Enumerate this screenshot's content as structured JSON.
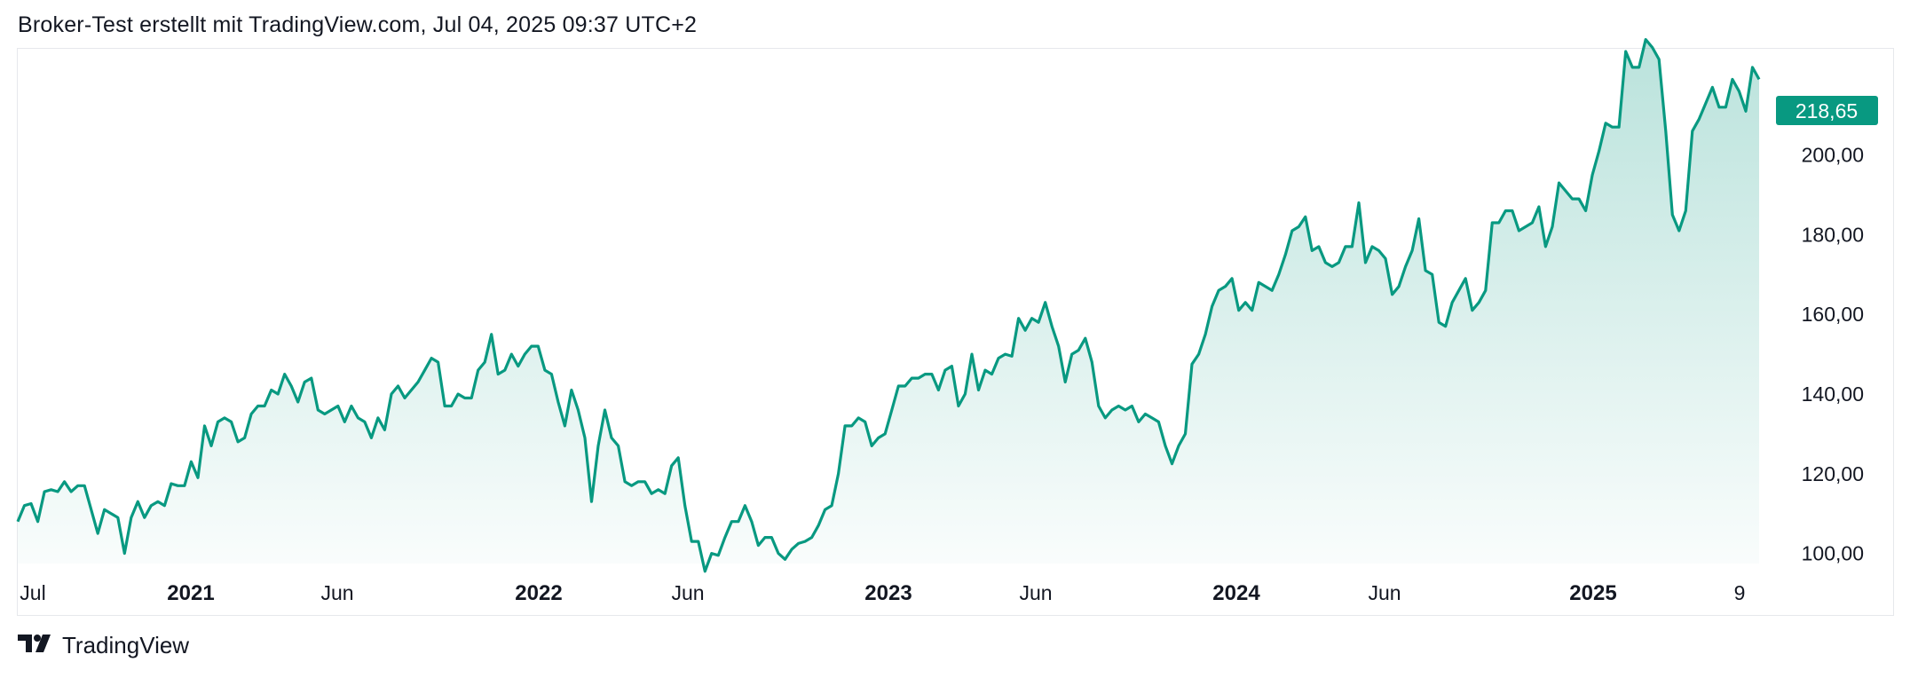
{
  "header": {
    "caption": "Broker-Test erstellt mit TradingView.com, Jul 04, 2025 09:37 UTC+2"
  },
  "footer": {
    "brand": "TradingView",
    "logo_icon": "tradingview-logo-icon"
  },
  "colors": {
    "line": "#089981",
    "fill_top": "#089981",
    "price_label_bg": "#089981",
    "text": "#131722",
    "border": "#e6e8ec"
  },
  "chart_data": {
    "type": "area",
    "x_start": "2020-07",
    "x_end": "2025-07-04",
    "ylim": [
      93,
      230
    ],
    "y_ticks": [
      "100,00",
      "120,00",
      "140,00",
      "160,00",
      "180,00",
      "200,00"
    ],
    "x_ticks": [
      {
        "label": "Jul",
        "bold": false
      },
      {
        "label": "2021",
        "bold": true
      },
      {
        "label": "Jun",
        "bold": false
      },
      {
        "label": "2022",
        "bold": true
      },
      {
        "label": "Jun",
        "bold": false
      },
      {
        "label": "2023",
        "bold": true
      },
      {
        "label": "Jun",
        "bold": false
      },
      {
        "label": "2024",
        "bold": true
      },
      {
        "label": "Jun",
        "bold": false
      },
      {
        "label": "2025",
        "bold": true
      },
      {
        "label": "9",
        "bold": false
      }
    ],
    "last_price_label": "218,65",
    "values": [
      108,
      112,
      112.5,
      108,
      115.5,
      116,
      115.5,
      118,
      115.5,
      117,
      117,
      111,
      105,
      111,
      110,
      109,
      100,
      109,
      113,
      109,
      112,
      113,
      112,
      117.5,
      117,
      117,
      123,
      119,
      132,
      127,
      133,
      134,
      133,
      128,
      129,
      135,
      137,
      137,
      141,
      140,
      145,
      142,
      138,
      143,
      144,
      136,
      135,
      136,
      137,
      133,
      137,
      134,
      133,
      129,
      134,
      131,
      140,
      142,
      139,
      141,
      143,
      146,
      149,
      148,
      137,
      137,
      140,
      139,
      139,
      146,
      148,
      155,
      145,
      146,
      150,
      147,
      150,
      152,
      152,
      146,
      145,
      138,
      132,
      141,
      136,
      129,
      113,
      127,
      136,
      129,
      127,
      118,
      117,
      118,
      118,
      115,
      116,
      115,
      122,
      124,
      112,
      103,
      103,
      95.5,
      100,
      99.5,
      104,
      108,
      108,
      112,
      108,
      102,
      104,
      104,
      100,
      98.5,
      101,
      102.5,
      103,
      104,
      107,
      111,
      112,
      120,
      132,
      132,
      134,
      133,
      127,
      129,
      130,
      136,
      142,
      142,
      144,
      144,
      145,
      145,
      141,
      146,
      147,
      137,
      140,
      150,
      141,
      146,
      145,
      149,
      150,
      149.5,
      159,
      156,
      159,
      158,
      163,
      157,
      152,
      143,
      150,
      151,
      154,
      148,
      137,
      134,
      136,
      137,
      136,
      137,
      133,
      135,
      134,
      133,
      127,
      122.5,
      127,
      130,
      147.5,
      150,
      155,
      162,
      166,
      167,
      169,
      161,
      163,
      161,
      168,
      167,
      166,
      170,
      175,
      181,
      182,
      184.5,
      176,
      177,
      173,
      172,
      173,
      177,
      177,
      188,
      173,
      177,
      176,
      174,
      165,
      167,
      172,
      176,
      184,
      171,
      170,
      158,
      157,
      163,
      166,
      169,
      161,
      163,
      166,
      183,
      183,
      186,
      186,
      181,
      182,
      183,
      187,
      177,
      182,
      193,
      191,
      189,
      189,
      186,
      195,
      201,
      208,
      207,
      207,
      226,
      222,
      222,
      229,
      227,
      224,
      206,
      185,
      181,
      186,
      206,
      209,
      213,
      217,
      212,
      212,
      219,
      216,
      211,
      222,
      219
    ]
  }
}
